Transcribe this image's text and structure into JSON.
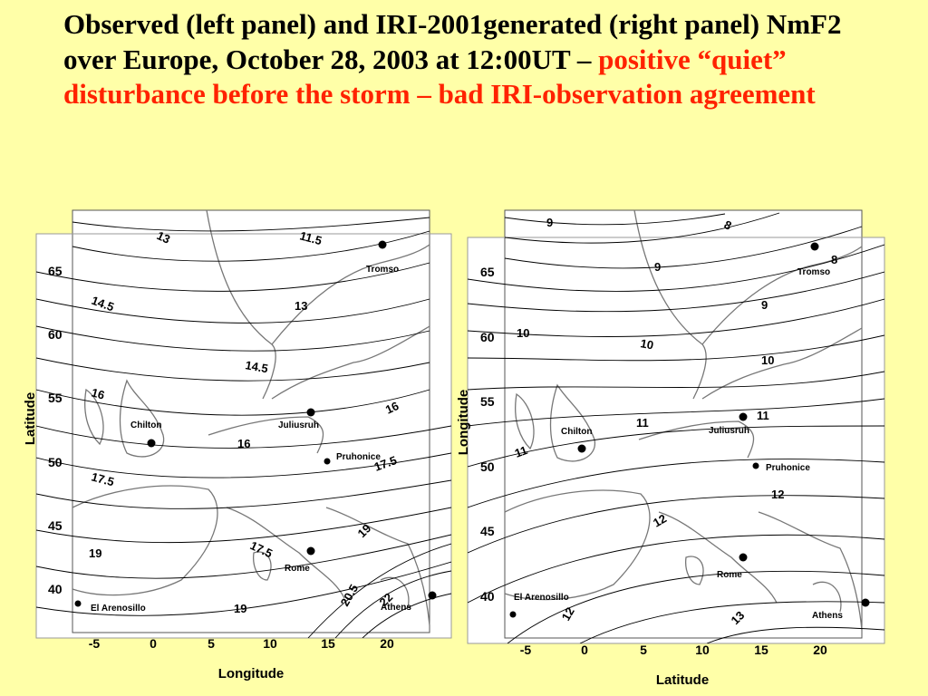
{
  "title": {
    "black": "Observed (left panel) and IRI-2001generated (right panel) NmF2 over Europe, October 28, 2003 at 12:00UT – ",
    "red": "positive “quiet” disturbance before the storm – bad IRI-observation agreement"
  },
  "left_panel": {
    "x_axis_label": "Longitude",
    "y_axis_label": "Latitude",
    "x_ticks": [
      "-5",
      "0",
      "5",
      "10",
      "15",
      "20"
    ],
    "y_ticks": [
      "65",
      "60",
      "55",
      "50",
      "45",
      "40"
    ],
    "contour_labels": [
      "13",
      "11.5",
      "14.5",
      "13",
      "14.5",
      "16",
      "16",
      "16",
      "17.5",
      "17.5",
      "19",
      "17.5",
      "19",
      "20.5",
      "22",
      "19"
    ],
    "stations": [
      "Tromso",
      "Juliusruh",
      "Chilton",
      "Pruhonice",
      "Rome",
      "El Arenosillo",
      "Athens"
    ]
  },
  "right_panel": {
    "x_axis_label": "Latitude",
    "y_axis_label": "Longitude",
    "x_ticks": [
      "-5",
      "0",
      "5",
      "10",
      "15",
      "20"
    ],
    "y_ticks": [
      "65",
      "60",
      "55",
      "50",
      "45",
      "40"
    ],
    "contour_labels": [
      "9",
      "8",
      "9",
      "8",
      "9",
      "10",
      "10",
      "10",
      "11",
      "11",
      "11",
      "12",
      "12",
      "12",
      "13"
    ],
    "stations": [
      "Tromso",
      "Juliusruh",
      "Chilton",
      "Pruhonice",
      "Rome",
      "El Arenosillo",
      "Athens"
    ]
  }
}
